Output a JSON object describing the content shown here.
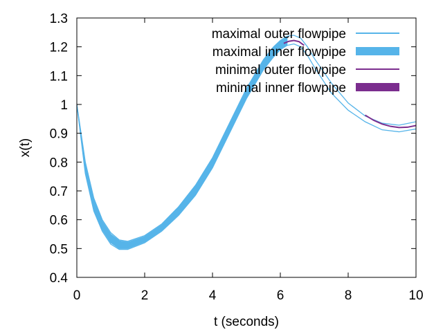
{
  "chart_data": {
    "type": "line",
    "title": "",
    "xlabel": "t (seconds)",
    "ylabel": "x(t)",
    "xlim": [
      0,
      10
    ],
    "ylim": [
      0.4,
      1.3
    ],
    "xticks": [
      0,
      2,
      4,
      6,
      8,
      10
    ],
    "yticks": [
      0.4,
      0.5,
      0.6,
      0.7,
      0.8,
      0.9,
      1,
      1.1,
      1.2,
      1.3
    ],
    "xtick_labels": [
      "0",
      "2",
      "4",
      "6",
      "8",
      "10"
    ],
    "ytick_labels": [
      "0.4",
      "0.5",
      "0.6",
      "0.7",
      "0.8",
      "0.9",
      "1",
      "1.1",
      "1.2",
      "1.3"
    ],
    "grid": false,
    "legend_position": "top-right",
    "colors": {
      "maximal": "#56b4e9",
      "minimal": "#7b2d8e"
    },
    "series": [
      {
        "name": "maximal outer flowpipe",
        "style": "thin-line",
        "color": "#56b4e9",
        "bounds": {
          "x": [
            0,
            0.25,
            0.5,
            0.75,
            1.0,
            1.25,
            1.5,
            2.0,
            2.5,
            3.0,
            3.5,
            4.0,
            4.5,
            5.0,
            5.5,
            5.8,
            6.0,
            6.2,
            6.4,
            6.6,
            6.8,
            7.0,
            7.5,
            8.0,
            8.5,
            9.0,
            9.5,
            10.0
          ],
          "lower": [
            1.0,
            0.76,
            0.63,
            0.56,
            0.515,
            0.497,
            0.497,
            0.52,
            0.56,
            0.615,
            0.685,
            0.78,
            0.9,
            1.02,
            1.12,
            1.165,
            1.19,
            1.205,
            1.21,
            1.2,
            1.17,
            1.13,
            1.04,
            0.98,
            0.94,
            0.912,
            0.905,
            0.915
          ],
          "upper": [
            1.0,
            0.8,
            0.675,
            0.6,
            0.555,
            0.53,
            0.525,
            0.545,
            0.585,
            0.645,
            0.72,
            0.815,
            0.935,
            1.055,
            1.155,
            1.2,
            1.222,
            1.237,
            1.24,
            1.23,
            1.2,
            1.16,
            1.075,
            1.005,
            0.96,
            0.935,
            0.928,
            0.94
          ]
        }
      },
      {
        "name": "maximal inner flowpipe",
        "style": "filled-band",
        "color": "#56b4e9",
        "bounds": {
          "x": [
            0,
            0.25,
            0.5,
            0.75,
            1.0,
            1.25,
            1.5,
            2.0,
            2.5,
            3.0,
            3.5,
            4.0,
            4.5,
            5.0,
            5.5,
            5.8,
            6.0,
            6.2
          ],
          "lower": [
            1.0,
            0.765,
            0.635,
            0.565,
            0.52,
            0.5,
            0.5,
            0.523,
            0.563,
            0.618,
            0.688,
            0.783,
            0.903,
            1.023,
            1.123,
            1.168,
            1.192,
            1.207
          ],
          "upper": [
            1.0,
            0.795,
            0.67,
            0.595,
            0.55,
            0.527,
            0.522,
            0.542,
            0.582,
            0.642,
            0.717,
            0.812,
            0.932,
            1.052,
            1.152,
            1.197,
            1.219,
            1.234
          ]
        }
      },
      {
        "name": "minimal outer flowpipe",
        "style": "thin-line",
        "color": "#7b2d8e",
        "segments": [
          {
            "x": [
              6.1,
              6.25,
              6.4,
              6.55,
              6.7
            ],
            "y": [
              1.212,
              1.219,
              1.222,
              1.218,
              1.205
            ]
          },
          {
            "x": [
              8.5,
              8.75,
              9.0,
              9.25,
              9.5,
              9.75,
              10.0
            ],
            "y": [
              0.963,
              0.945,
              0.932,
              0.924,
              0.92,
              0.921,
              0.927
            ]
          }
        ]
      },
      {
        "name": "minimal inner flowpipe",
        "style": "thick-line",
        "color": "#7b2d8e",
        "segments": []
      }
    ]
  }
}
